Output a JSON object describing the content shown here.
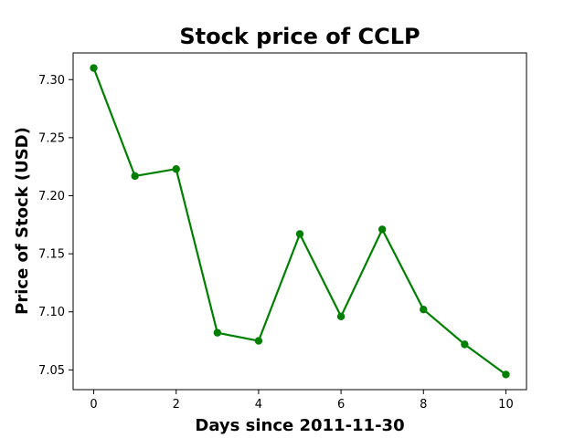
{
  "chart_data": {
    "type": "line",
    "title": "Stock price of CCLP",
    "xlabel": "Days since 2011-11-30",
    "ylabel": "Price of Stock (USD)",
    "x": [
      0,
      1,
      2,
      3,
      4,
      5,
      6,
      7,
      8,
      9,
      10
    ],
    "series": [
      {
        "values": [
          7.31,
          7.217,
          7.223,
          7.082,
          7.075,
          7.167,
          7.096,
          7.171,
          7.102,
          7.072,
          7.046
        ]
      }
    ],
    "xlim": [
      -0.5,
      10.5
    ],
    "ylim": [
      7.033,
      7.323
    ],
    "xticks": [
      0,
      2,
      4,
      6,
      8,
      10
    ],
    "yticks": [
      7.05,
      7.1,
      7.15,
      7.2,
      7.25,
      7.3
    ],
    "ytick_labels": [
      "7.05",
      "7.10",
      "7.15",
      "7.20",
      "7.25",
      "7.30"
    ],
    "grid": false,
    "line_color": "#008000"
  }
}
